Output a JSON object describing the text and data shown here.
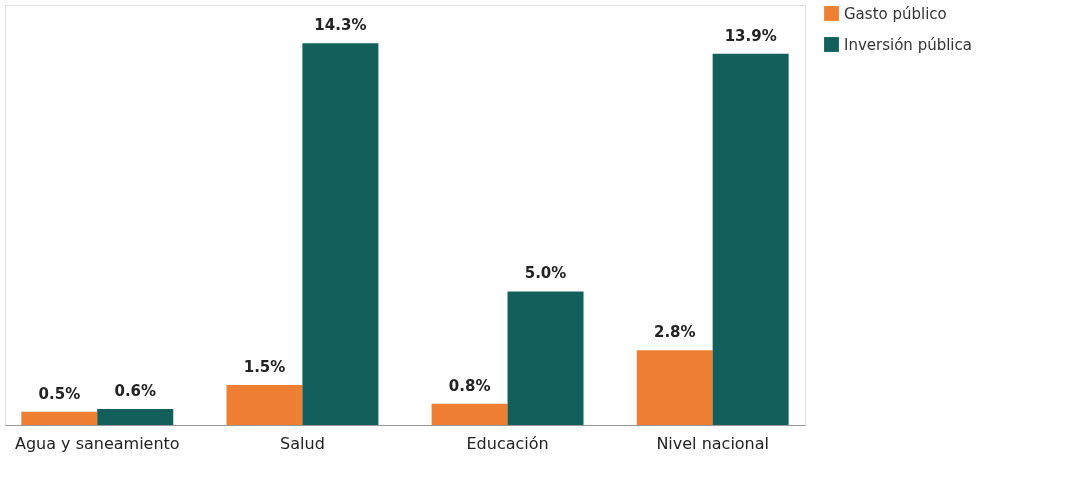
{
  "chart_data": {
    "type": "bar",
    "categories": [
      "Agua y saneamiento",
      "Salud",
      "Educación",
      "Nivel nacional"
    ],
    "series": [
      {
        "name": "Gasto público",
        "color": "#ee7f33",
        "values": [
          0.5,
          1.5,
          0.8,
          2.8
        ],
        "value_labels": [
          "0.5%",
          "1.5%",
          "0.8%",
          "2.8%"
        ]
      },
      {
        "name": "Inversión pública",
        "color": "#135f5c",
        "values": [
          0.6,
          14.3,
          5.0,
          13.9
        ],
        "value_labels": [
          "0.6%",
          "14.3%",
          "5.0%",
          "13.9%"
        ]
      }
    ],
    "legend": "right",
    "grid": false,
    "tick_labels": "x"
  }
}
